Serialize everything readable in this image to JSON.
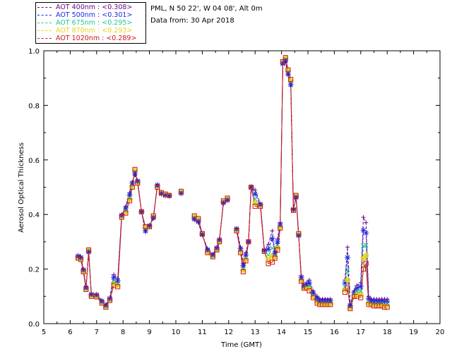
{
  "header": {
    "site": "PML, N 50 22', W 04 08', Alt 0m",
    "date": "Data from: 30 Apr 2018"
  },
  "legend": [
    {
      "label": "AOT  400nm : <0.308>",
      "color": "#6a0a8a"
    },
    {
      "label": "AOT  500nm : <0.301>",
      "color": "#1e28e6"
    },
    {
      "label": "AOT  675nm : <0.295>",
      "color": "#1ec896"
    },
    {
      "label": "AOT  870nm : <0.293>",
      "color": "#e6d21e"
    },
    {
      "label": "AOT 1020nm : <0.289>",
      "color": "#d21414"
    }
  ],
  "chart_data": {
    "type": "line",
    "xlabel": "Time (GMT)",
    "ylabel": "Aerosol Optical Thickness",
    "xlim": [
      5,
      20
    ],
    "ylim": [
      0.0,
      1.0
    ],
    "xticks": [
      "5",
      "6",
      "7",
      "8",
      "9",
      "10",
      "11",
      "12",
      "13",
      "14",
      "15",
      "16",
      "17",
      "18",
      "19",
      "20"
    ],
    "yticks": [
      "0.0",
      "0.2",
      "0.4",
      "0.6",
      "0.8",
      "1.0"
    ],
    "segments": [
      {
        "x": [
          6.3,
          6.4,
          6.5,
          6.6,
          6.7,
          6.8,
          7.0,
          7.2,
          7.35,
          7.5,
          7.65,
          7.8,
          7.95,
          8.1,
          8.25,
          8.35,
          8.45,
          8.55,
          8.7,
          8.85,
          9.0,
          9.15,
          9.3,
          9.45,
          9.6,
          9.75
        ],
        "v1020": [
          0.24,
          0.235,
          0.19,
          0.125,
          0.27,
          0.1,
          0.098,
          0.075,
          0.06,
          0.085,
          0.14,
          0.135,
          0.39,
          0.405,
          0.45,
          0.5,
          0.565,
          0.515,
          0.41,
          0.355,
          0.355,
          0.395,
          0.5,
          0.48,
          0.475,
          0.47
        ],
        "v400": [
          0.25,
          0.245,
          0.2,
          0.135,
          0.26,
          0.11,
          0.108,
          0.085,
          0.07,
          0.095,
          0.18,
          0.165,
          0.4,
          0.43,
          0.48,
          0.52,
          0.545,
          0.525,
          0.41,
          0.335,
          0.36,
          0.385,
          0.51,
          0.475,
          0.468,
          0.468
        ]
      },
      {
        "x": [
          10.2
        ],
        "v1020": [
          0.485
        ],
        "v400": [
          0.475
        ]
      },
      {
        "x": [
          10.7,
          10.85,
          11.0,
          11.2,
          11.4,
          11.55,
          11.65,
          11.8,
          11.95
        ],
        "v1020": [
          0.395,
          0.385,
          0.33,
          0.26,
          0.245,
          0.27,
          0.3,
          0.45,
          0.46
        ],
        "v400": [
          0.38,
          0.37,
          0.325,
          0.275,
          0.255,
          0.28,
          0.31,
          0.44,
          0.45
        ]
      },
      {
        "x": [
          12.3,
          12.45,
          12.55,
          12.65,
          12.75,
          12.85,
          13.0,
          13.2,
          13.35,
          13.5,
          13.65,
          13.75,
          13.85,
          13.95,
          14.05,
          14.15,
          14.25,
          14.35,
          14.45,
          14.55,
          14.65,
          14.75,
          14.85,
          14.95,
          15.05,
          15.2,
          15.35,
          15.45,
          15.55,
          15.65,
          15.75,
          15.85
        ],
        "v1020": [
          0.34,
          0.26,
          0.19,
          0.23,
          0.3,
          0.5,
          0.43,
          0.43,
          0.265,
          0.22,
          0.225,
          0.24,
          0.27,
          0.35,
          0.96,
          0.975,
          0.93,
          0.895,
          0.415,
          0.47,
          0.33,
          0.155,
          0.13,
          0.13,
          0.12,
          0.095,
          0.075,
          0.07,
          0.07,
          0.07,
          0.07,
          0.07
        ],
        "v400": [
          0.35,
          0.28,
          0.22,
          0.26,
          0.3,
          0.5,
          0.49,
          0.44,
          0.27,
          0.29,
          0.34,
          0.265,
          0.31,
          0.37,
          0.95,
          0.96,
          0.91,
          0.87,
          0.42,
          0.46,
          0.32,
          0.175,
          0.14,
          0.15,
          0.16,
          0.12,
          0.1,
          0.09,
          0.09,
          0.09,
          0.09,
          0.09
        ]
      },
      {
        "x": [
          16.4,
          16.5,
          16.6,
          16.75,
          16.85,
          17.0,
          17.1,
          17.2,
          17.3,
          17.4,
          17.5,
          17.6,
          17.7,
          17.8,
          17.9,
          18.0
        ],
        "v1020": [
          0.115,
          0.13,
          0.055,
          0.1,
          0.1,
          0.095,
          0.2,
          0.22,
          0.07,
          0.07,
          0.065,
          0.065,
          0.065,
          0.065,
          0.06,
          0.06
        ],
        "v400": [
          0.16,
          0.28,
          0.07,
          0.12,
          0.14,
          0.15,
          0.39,
          0.37,
          0.1,
          0.09,
          0.09,
          0.09,
          0.09,
          0.09,
          0.09,
          0.09
        ]
      }
    ]
  }
}
